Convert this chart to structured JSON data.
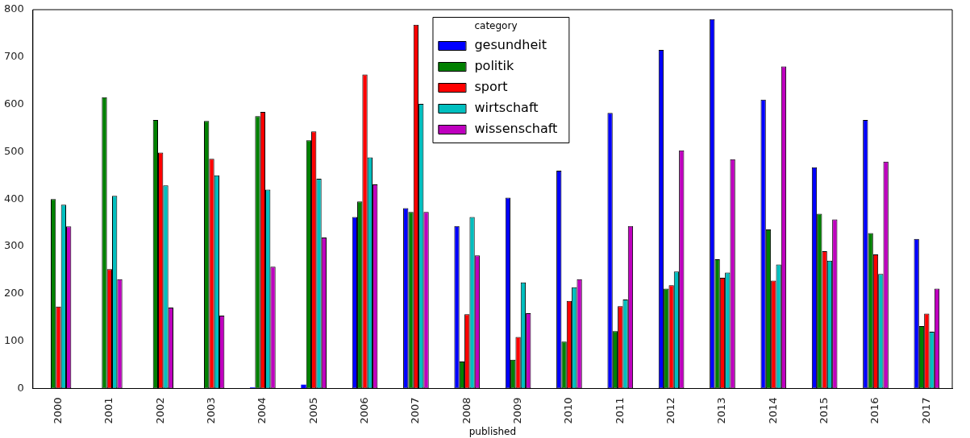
{
  "chart_data": {
    "type": "bar",
    "xlabel": "published",
    "legend_title": "category",
    "legend": "top",
    "grid": false,
    "categories": [
      "2000",
      "2001",
      "2002",
      "2003",
      "2004",
      "2005",
      "2006",
      "2007",
      "2008",
      "2009",
      "2010",
      "2011",
      "2012",
      "2013",
      "2014",
      "2015",
      "2016",
      "2017"
    ],
    "ylim": [
      0,
      800
    ],
    "yticks": [
      0,
      100,
      200,
      300,
      400,
      500,
      600,
      700,
      800
    ],
    "series": [
      {
        "name": "gesundheit",
        "color": "#0000ff",
        "values": [
          null,
          null,
          null,
          null,
          2,
          8,
          362,
          381,
          343,
          403,
          460,
          582,
          715,
          780,
          610,
          467,
          567,
          316
        ]
      },
      {
        "name": "politik",
        "color": "#008000",
        "values": [
          400,
          615,
          567,
          565,
          575,
          524,
          395,
          373,
          57,
          61,
          99,
          121,
          211,
          273,
          336,
          369,
          328,
          132
        ]
      },
      {
        "name": "sport",
        "color": "#ff0000",
        "values": [
          173,
          252,
          498,
          485,
          584,
          543,
          663,
          768,
          157,
          109,
          185,
          174,
          218,
          234,
          228,
          290,
          283,
          158
        ]
      },
      {
        "name": "wirtschaft",
        "color": "#00bfbf",
        "values": [
          388,
          407,
          429,
          450,
          420,
          443,
          488,
          601,
          362,
          224,
          214,
          188,
          247,
          245,
          262,
          270,
          242,
          120
        ]
      },
      {
        "name": "wissenschaft",
        "color": "#bf00bf",
        "values": [
          342,
          231,
          171,
          154,
          257,
          319,
          431,
          373,
          281,
          159,
          231,
          343,
          503,
          484,
          680,
          357,
          479,
          211
        ]
      }
    ]
  }
}
